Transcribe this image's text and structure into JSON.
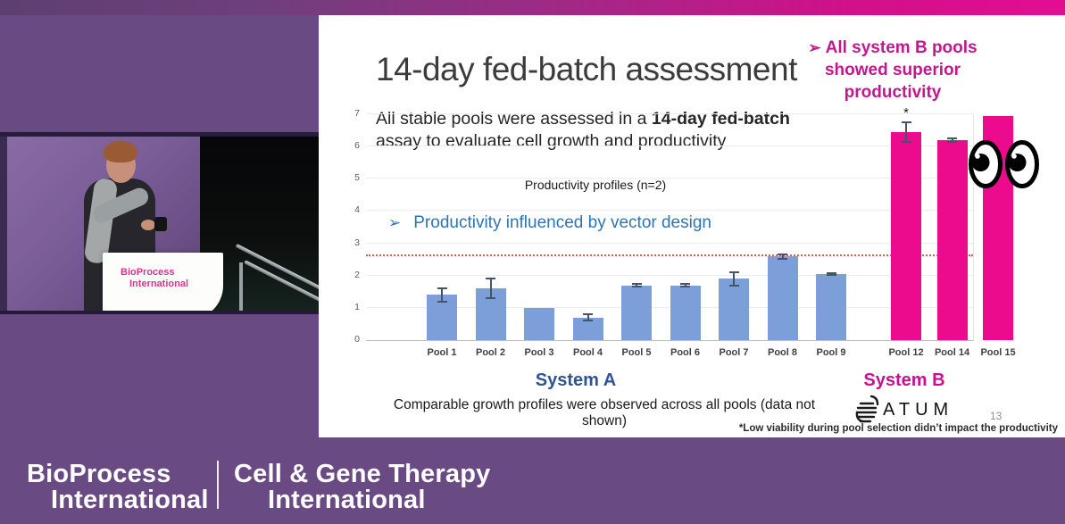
{
  "slide": {
    "title": "14-day fed-batch assessment",
    "body": {
      "line1_pre": "All stable pools were assessed in a ",
      "line1_bold": "14-day fed-batch",
      "line2": "assay to evaluate cell growth and productivity"
    },
    "bullet_blue": {
      "marker": "➢",
      "text": "Productivity influenced by vector design"
    },
    "callout_pink": {
      "marker": "➢",
      "line1_pre": "All ",
      "line1_bold": "system B",
      "line1_post": " pools",
      "line2": "showed superior",
      "line3": "productivity"
    },
    "system_a_label": "System A",
    "system_b_label": "System B",
    "bottom_note": "Comparable growth profiles were observed across all pools (data not shown)",
    "footnote": "*Low viability during pool selection didn’t impact the productivity",
    "page_number": "13",
    "logo_text": "ATUM"
  },
  "chart_data": {
    "type": "bar",
    "title": "Productivity profiles (n=2)",
    "xlabel": "",
    "ylabel": "",
    "ylim": [
      0,
      7
    ],
    "yticks": [
      0,
      1,
      2,
      3,
      4,
      5,
      6,
      7
    ],
    "grid": true,
    "legend_position": "none",
    "threshold_line": {
      "value": 2.6,
      "style": "dotted",
      "color": "#e05a5a"
    },
    "series": [
      {
        "name": "System A",
        "color": "#7C9FD9",
        "points": [
          {
            "label": "Pool 1",
            "value": 1.4,
            "error": 0.2
          },
          {
            "label": "Pool 2",
            "value": 1.6,
            "error": 0.3
          },
          {
            "label": "Pool 3",
            "value": 1.0,
            "error": 0
          },
          {
            "label": "Pool 4",
            "value": 0.7,
            "error": 0.1
          },
          {
            "label": "Pool 5",
            "value": 1.7,
            "error": 0.05
          },
          {
            "label": "Pool 6",
            "value": 1.7,
            "error": 0.05
          },
          {
            "label": "Pool 7",
            "value": 1.9,
            "error": 0.2
          },
          {
            "label": "Pool 8",
            "value": 2.6,
            "error": 0.07
          },
          {
            "label": "Pool 9",
            "value": 2.05,
            "error": 0.03
          }
        ]
      },
      {
        "name": "System B",
        "color": "#EC0A8D",
        "points": [
          {
            "label": "Pool 12",
            "value": 6.45,
            "error": 0.3,
            "annotation": "*"
          },
          {
            "label": "Pool 14",
            "value": 6.2,
            "error": 0.05
          },
          {
            "label": "Pool 15",
            "value": 6.95,
            "error": 0
          }
        ]
      }
    ]
  },
  "video": {
    "podium_line1": "BioProcess",
    "podium_line2": "International"
  },
  "banner": {
    "left_line1": "BioProcess",
    "left_line2": "International",
    "right_line1": "Cell & Gene Therapy",
    "right_line2": "International"
  },
  "colors": {
    "background_purple": "#6A4A83",
    "accent_pink": "#EC0A8D",
    "callout_pink_text": "#C2188E",
    "system_a_blue": "#2F5496",
    "bullet_blue": "#2E74B5",
    "bar_blue": "#7C9FD9",
    "threshold_red": "#e05a5a"
  }
}
